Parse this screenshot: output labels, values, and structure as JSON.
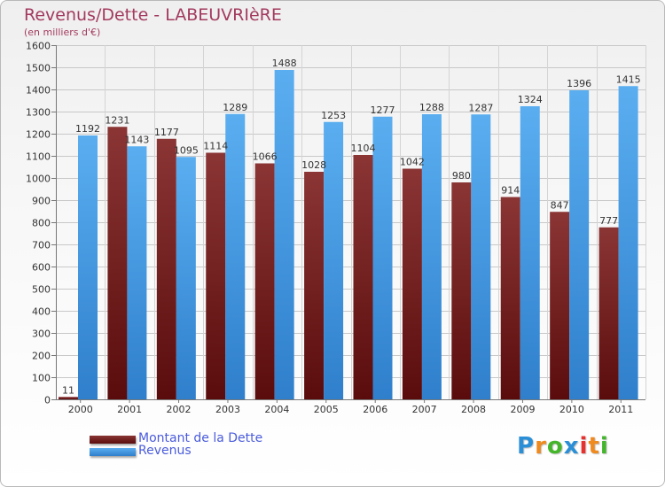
{
  "colors": {
    "title": "#a33a5f",
    "debt_top": "#8b3535",
    "debt_bottom": "#5a0c0c",
    "revenue_top": "#5aaef0",
    "revenue_bottom": "#2f7fcc",
    "legend_text": "#4a5cdc"
  },
  "chart_data": {
    "type": "bar",
    "title": "Revenus/Dette - LABEUVRIèRE",
    "subtitle": "(en milliers d'€)",
    "categories": [
      "2000",
      "2001",
      "2002",
      "2003",
      "2004",
      "2005",
      "2006",
      "2007",
      "2008",
      "2009",
      "2010",
      "2011"
    ],
    "series": [
      {
        "name": "Montant de la Dette",
        "values": [
          11,
          1231,
          1177,
          1114,
          1066,
          1028,
          1104,
          1042,
          980,
          914,
          847,
          777
        ]
      },
      {
        "name": "Revenus",
        "values": [
          1192,
          1143,
          1095,
          1289,
          1488,
          1253,
          1277,
          1288,
          1287,
          1324,
          1396,
          1415
        ]
      }
    ],
    "ylim": [
      0,
      1600
    ],
    "yticks": [
      0,
      100,
      200,
      300,
      400,
      500,
      600,
      700,
      800,
      900,
      1000,
      1100,
      1200,
      1300,
      1400,
      1500,
      1600
    ],
    "grid": true,
    "legend_position": "bottom-left"
  },
  "logo": {
    "letters": [
      "P",
      "r",
      "o",
      "x",
      "i",
      "t",
      "i"
    ],
    "colors": [
      "#2a8fd6",
      "#ef8a1f",
      "#45b52c",
      "#2a8fd6",
      "#e8312e",
      "#ef8a1f",
      "#45b52c"
    ]
  }
}
